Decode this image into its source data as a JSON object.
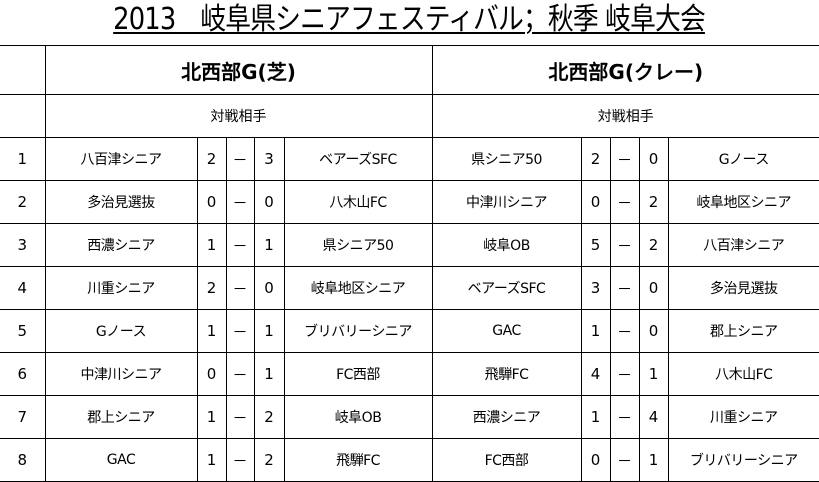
{
  "title": "2013　岐阜県シニアフェスティバル；秋季 岐阜大会",
  "groups": [
    {
      "name": "北西部G(芝)",
      "subheader": "対戦相手"
    },
    {
      "name": "北西部G(クレー)",
      "subheader": "対戦相手"
    }
  ],
  "dash": "－",
  "rows": [
    {
      "no": "1",
      "a": {
        "home": "八百津シニア",
        "hs": "2",
        "as": "3",
        "away": "ベアーズSFC"
      },
      "b": {
        "home": "県シニア50",
        "hs": "2",
        "as": "0",
        "away": "Gノース"
      }
    },
    {
      "no": "2",
      "a": {
        "home": "多治見選抜",
        "hs": "0",
        "as": "0",
        "away": "八木山FC"
      },
      "b": {
        "home": "中津川シニア",
        "hs": "0",
        "as": "2",
        "away": "岐阜地区シニア"
      }
    },
    {
      "no": "3",
      "a": {
        "home": "西濃シニア",
        "hs": "1",
        "as": "1",
        "away": "県シニア50"
      },
      "b": {
        "home": "岐阜OB",
        "hs": "5",
        "as": "2",
        "away": "八百津シニア"
      }
    },
    {
      "no": "4",
      "a": {
        "home": "川重シニア",
        "hs": "2",
        "as": "0",
        "away": "岐阜地区シニア"
      },
      "b": {
        "home": "ベアーズSFC",
        "hs": "3",
        "as": "0",
        "away": "多治見選抜"
      }
    },
    {
      "no": "5",
      "a": {
        "home": "Gノース",
        "hs": "1",
        "as": "1",
        "away": "ブリバリーシニア"
      },
      "b": {
        "home": "GAC",
        "hs": "1",
        "as": "0",
        "away": "郡上シニア"
      }
    },
    {
      "no": "6",
      "a": {
        "home": "中津川シニア",
        "hs": "0",
        "as": "1",
        "away": "FC西部"
      },
      "b": {
        "home": "飛騨FC",
        "hs": "4",
        "as": "1",
        "away": "八木山FC"
      }
    },
    {
      "no": "7",
      "a": {
        "home": "郡上シニア",
        "hs": "1",
        "as": "2",
        "away": "岐阜OB"
      },
      "b": {
        "home": "西濃シニア",
        "hs": "1",
        "as": "4",
        "away": "川重シニア"
      }
    },
    {
      "no": "8",
      "a": {
        "home": "GAC",
        "hs": "1",
        "as": "2",
        "away": "飛騨FC"
      },
      "b": {
        "home": "FC西部",
        "hs": "0",
        "as": "1",
        "away": "ブリバリーシニア"
      }
    }
  ]
}
